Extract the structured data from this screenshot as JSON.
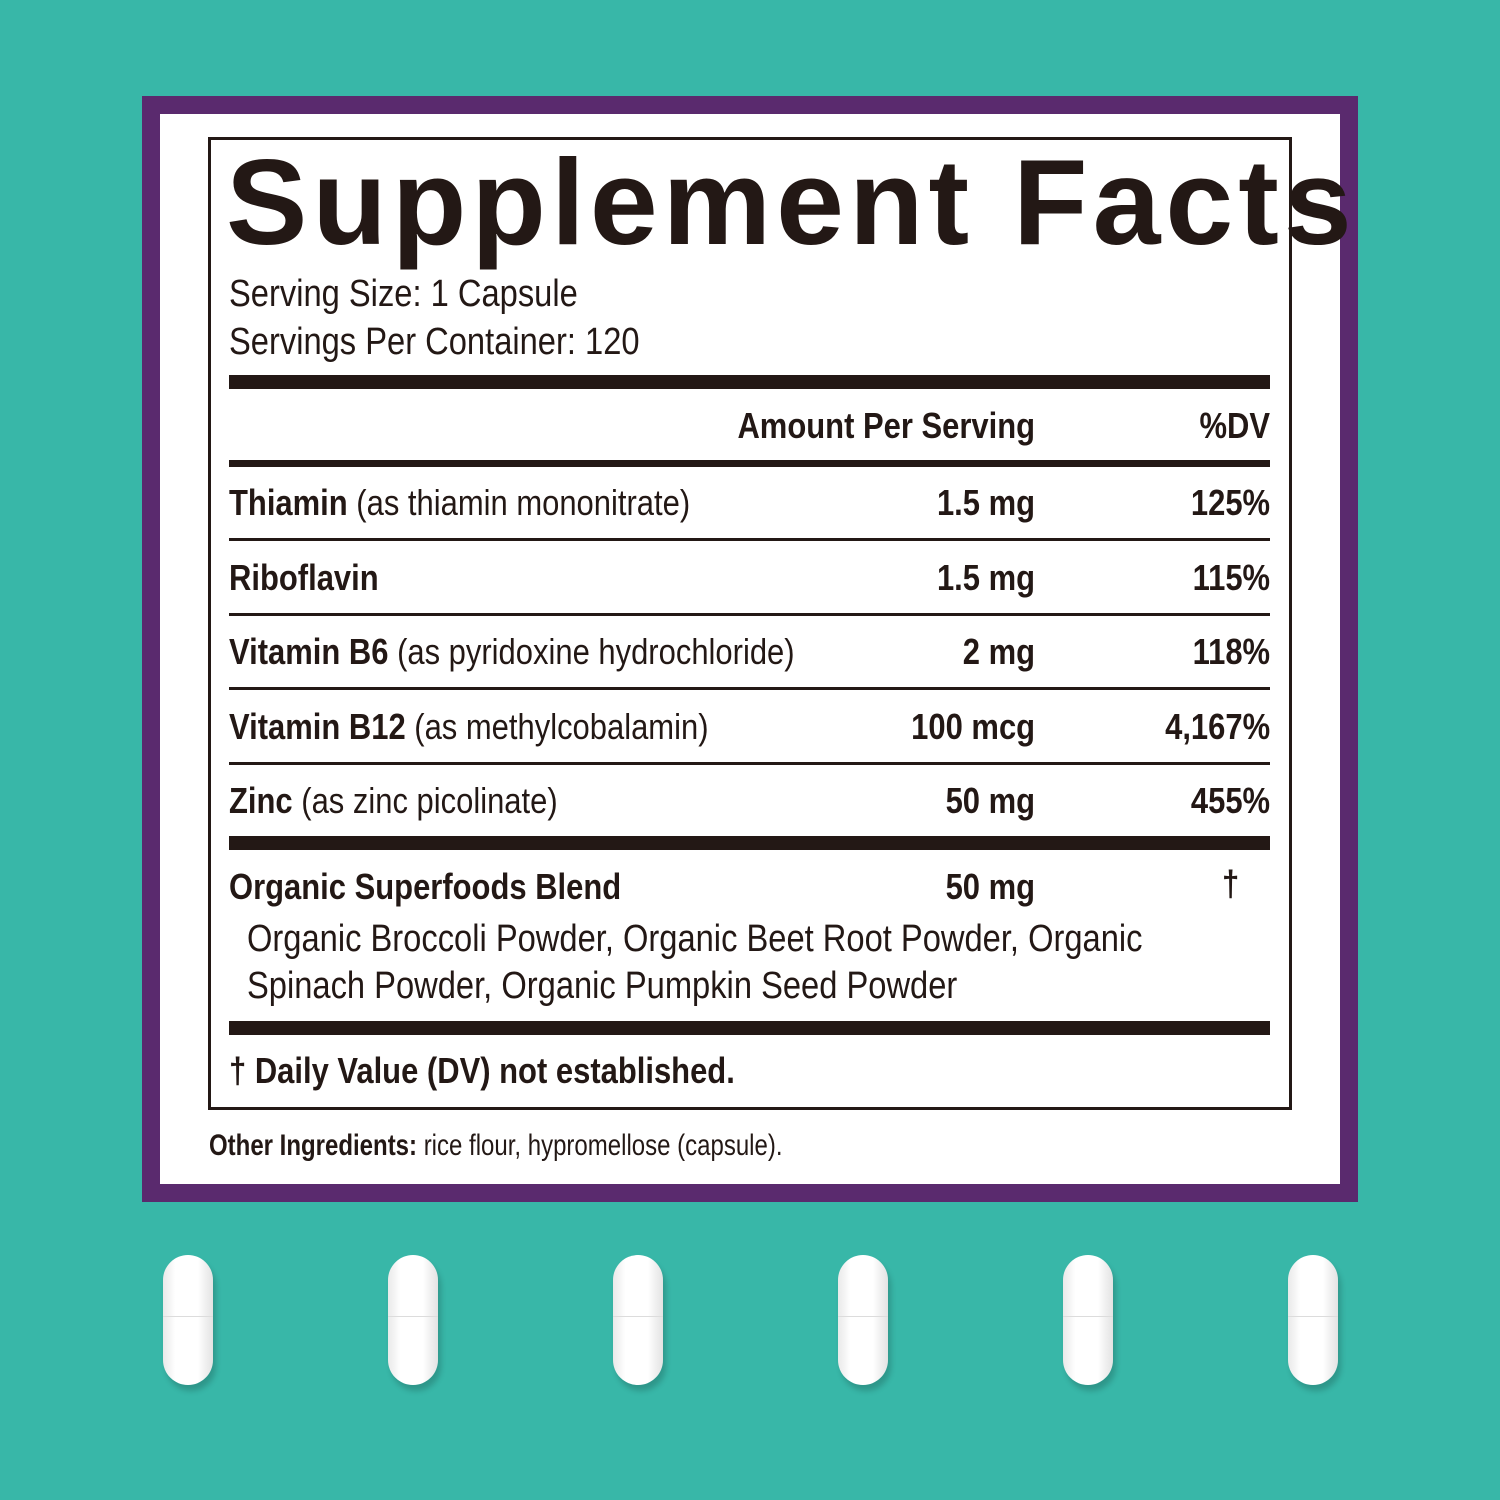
{
  "colors": {
    "background": "#38b7a8",
    "frame": "#5a2a6e",
    "text": "#231815"
  },
  "title": "Supplement Facts",
  "serving_size": "Serving Size: 1 Capsule",
  "servings_per_container": "Servings Per Container: 120",
  "header": {
    "amount": "Amount Per Serving",
    "dv": "%DV"
  },
  "rows": [
    {
      "name": "Thiamin",
      "detail": "(as thiamin mononitrate)",
      "amount": "1.5 mg",
      "dv": "125%"
    },
    {
      "name": "Riboflavin",
      "detail": "",
      "amount": "1.5 mg",
      "dv": "115%"
    },
    {
      "name": "Vitamin B6",
      "detail": "(as pyridoxine hydrochloride)",
      "amount": "2 mg",
      "dv": "118%"
    },
    {
      "name": "Vitamin B12",
      "detail": "(as methylcobalamin)",
      "amount": "100 mcg",
      "dv": "4,167%"
    },
    {
      "name": "Zinc",
      "detail": "(as zinc picolinate)",
      "amount": "50 mg",
      "dv": "455%"
    }
  ],
  "blend": {
    "name": "Organic Superfoods Blend",
    "amount": "50 mg",
    "dv": "†",
    "ingredients_line1": "Organic Broccoli Powder, Organic Beet Root Powder, Organic",
    "ingredients_line2": "Spinach Powder, Organic Pumpkin Seed Powder"
  },
  "footnote": "† Daily Value (DV) not established.",
  "other_ingredients": {
    "label": "Other Ingredients:",
    "text": " rice flour, hypromellose (capsule)."
  },
  "capsule_count": 6
}
